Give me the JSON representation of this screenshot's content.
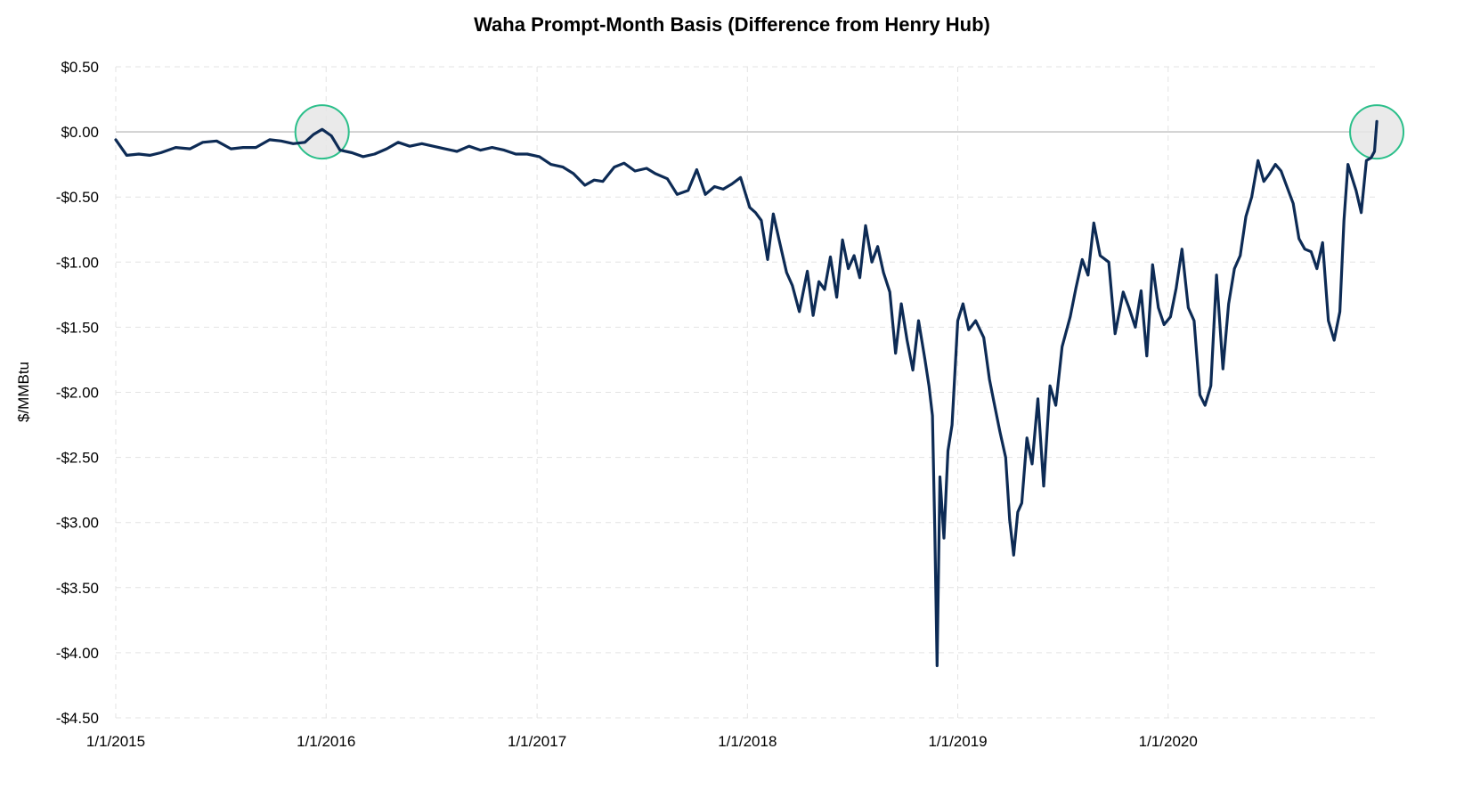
{
  "chart_data": {
    "type": "line",
    "title": "Waha Prompt-Month Basis (Difference from Henry Hub)",
    "xlabel": "",
    "ylabel": "$/MMBtu",
    "ylim": [
      -4.5,
      0.5
    ],
    "xlim": [
      "2015-01-01",
      "2020-12-31"
    ],
    "y_ticks": [
      0.5,
      0.0,
      -0.5,
      -1.0,
      -1.5,
      -2.0,
      -2.5,
      -3.0,
      -3.5,
      -4.0,
      -4.5
    ],
    "y_tick_labels": [
      "$0.50",
      "$0.00",
      "-$0.50",
      "-$1.00",
      "-$1.50",
      "-$2.00",
      "-$2.50",
      "-$3.00",
      "-$3.50",
      "-$4.00",
      "-$4.50"
    ],
    "x_ticks": [
      "2015-01-01",
      "2016-01-01",
      "2017-01-01",
      "2018-01-01",
      "2019-01-01",
      "2020-01-01"
    ],
    "x_tick_labels": [
      "1/1/2015",
      "1/1/2016",
      "1/1/2017",
      "1/1/2018",
      "1/1/2019",
      "1/1/2020"
    ],
    "grid": true,
    "legend": "none",
    "line_color": "#0d2b55",
    "highlight_color": "#2bbf8a",
    "zero_line_color": "#c8c8c8",
    "highlights": [
      {
        "x": "2015-12-25",
        "y": 0.0
      },
      {
        "x": "2020-12-28",
        "y": 0.0
      }
    ],
    "series": [
      {
        "x": [
          "2015-01-01",
          "2015-01-20",
          "2015-02-10",
          "2015-03-01",
          "2015-03-20",
          "2015-04-15",
          "2015-05-10",
          "2015-06-01",
          "2015-06-25",
          "2015-07-20",
          "2015-08-10",
          "2015-09-01",
          "2015-09-25",
          "2015-10-15",
          "2015-11-05",
          "2015-11-25",
          "2015-12-10",
          "2015-12-25",
          "2016-01-10",
          "2016-01-25",
          "2016-02-15",
          "2016-03-05",
          "2016-03-25",
          "2016-04-15",
          "2016-05-05",
          "2016-05-25",
          "2016-06-15",
          "2016-07-05",
          "2016-07-25",
          "2016-08-15",
          "2016-09-05",
          "2016-09-25",
          "2016-10-15",
          "2016-11-05",
          "2016-11-25",
          "2016-12-15",
          "2017-01-05",
          "2017-01-25",
          "2017-02-15",
          "2017-03-05",
          "2017-03-25",
          "2017-04-10",
          "2017-04-25",
          "2017-05-15",
          "2017-06-01",
          "2017-06-20",
          "2017-07-10",
          "2017-07-25",
          "2017-08-15",
          "2017-09-01",
          "2017-09-20",
          "2017-10-05",
          "2017-10-20",
          "2017-11-05",
          "2017-11-20",
          "2017-12-05",
          "2017-12-20",
          "2018-01-05",
          "2018-01-15",
          "2018-01-25",
          "2018-02-05",
          "2018-02-15",
          "2018-02-25",
          "2018-03-10",
          "2018-03-20",
          "2018-04-01",
          "2018-04-15",
          "2018-04-25",
          "2018-05-05",
          "2018-05-15",
          "2018-05-25",
          "2018-06-05",
          "2018-06-15",
          "2018-06-25",
          "2018-07-05",
          "2018-07-15",
          "2018-07-25",
          "2018-08-05",
          "2018-08-15",
          "2018-08-25",
          "2018-09-05",
          "2018-09-15",
          "2018-09-25",
          "2018-10-05",
          "2018-10-15",
          "2018-10-25",
          "2018-11-05",
          "2018-11-12",
          "2018-11-18",
          "2018-11-22",
          "2018-11-26",
          "2018-12-01",
          "2018-12-08",
          "2018-12-15",
          "2018-12-22",
          "2019-01-01",
          "2019-01-10",
          "2019-01-20",
          "2019-02-01",
          "2019-02-15",
          "2019-02-25",
          "2019-03-05",
          "2019-03-15",
          "2019-03-25",
          "2019-04-01",
          "2019-04-08",
          "2019-04-15",
          "2019-04-22",
          "2019-05-01",
          "2019-05-10",
          "2019-05-20",
          "2019-05-30",
          "2019-06-10",
          "2019-06-20",
          "2019-07-01",
          "2019-07-15",
          "2019-07-25",
          "2019-08-05",
          "2019-08-15",
          "2019-08-25",
          "2019-09-05",
          "2019-09-20",
          "2019-10-01",
          "2019-10-15",
          "2019-10-25",
          "2019-11-05",
          "2019-11-15",
          "2019-11-25",
          "2019-12-05",
          "2019-12-15",
          "2019-12-25",
          "2020-01-05",
          "2020-01-15",
          "2020-01-25",
          "2020-02-05",
          "2020-02-15",
          "2020-02-25",
          "2020-03-05",
          "2020-03-15",
          "2020-03-25",
          "2020-04-05",
          "2020-04-15",
          "2020-04-25",
          "2020-05-05",
          "2020-05-15",
          "2020-05-25",
          "2020-06-05",
          "2020-06-15",
          "2020-06-25",
          "2020-07-05",
          "2020-07-15",
          "2020-07-25",
          "2020-08-05",
          "2020-08-15",
          "2020-08-25",
          "2020-09-05",
          "2020-09-15",
          "2020-09-25",
          "2020-10-05",
          "2020-10-15",
          "2020-10-25",
          "2020-11-01",
          "2020-11-08",
          "2020-11-15",
          "2020-11-22",
          "2020-12-01",
          "2020-12-10",
          "2020-12-18",
          "2020-12-24",
          "2020-12-28"
        ],
        "values": [
          -0.06,
          -0.18,
          -0.17,
          -0.18,
          -0.16,
          -0.12,
          -0.13,
          -0.08,
          -0.07,
          -0.13,
          -0.12,
          -0.12,
          -0.06,
          -0.07,
          -0.09,
          -0.08,
          -0.02,
          0.02,
          -0.03,
          -0.14,
          -0.16,
          -0.19,
          -0.17,
          -0.13,
          -0.08,
          -0.11,
          -0.09,
          -0.11,
          -0.13,
          -0.15,
          -0.11,
          -0.14,
          -0.12,
          -0.14,
          -0.17,
          -0.17,
          -0.19,
          -0.25,
          -0.27,
          -0.32,
          -0.41,
          -0.37,
          -0.38,
          -0.27,
          -0.24,
          -0.3,
          -0.28,
          -0.32,
          -0.36,
          -0.48,
          -0.45,
          -0.29,
          -0.48,
          -0.42,
          -0.44,
          -0.4,
          -0.35,
          -0.58,
          -0.62,
          -0.68,
          -0.98,
          -0.63,
          -0.83,
          -1.08,
          -1.18,
          -1.38,
          -1.07,
          -1.41,
          -1.15,
          -1.21,
          -0.96,
          -1.27,
          -0.83,
          -1.05,
          -0.95,
          -1.12,
          -0.72,
          -1.0,
          -0.88,
          -1.08,
          -1.23,
          -1.7,
          -1.32,
          -1.6,
          -1.83,
          -1.45,
          -1.75,
          -1.95,
          -2.18,
          -3.05,
          -4.1,
          -2.65,
          -3.12,
          -2.45,
          -2.25,
          -1.45,
          -1.32,
          -1.52,
          -1.45,
          -1.58,
          -1.9,
          -2.08,
          -2.3,
          -2.5,
          -2.98,
          -3.25,
          -2.92,
          -2.85,
          -2.35,
          -2.55,
          -2.05,
          -2.72,
          -1.95,
          -2.1,
          -1.65,
          -1.42,
          -1.2,
          -0.98,
          -1.1,
          -0.7,
          -0.95,
          -1.0,
          -1.55,
          -1.23,
          -1.35,
          -1.5,
          -1.22,
          -1.72,
          -1.02,
          -1.35,
          -1.48,
          -1.42,
          -1.2,
          -0.9,
          -1.35,
          -1.45,
          -2.02,
          -2.1,
          -1.95,
          -1.1,
          -1.82,
          -1.32,
          -1.05,
          -0.95,
          -0.65,
          -0.5,
          -0.22,
          -0.38,
          -0.32,
          -0.25,
          -0.3,
          -0.42,
          -0.55,
          -0.82,
          -0.9,
          -0.92,
          -1.05,
          -0.85,
          -1.45,
          -1.6,
          -1.38,
          -0.68,
          -0.25,
          -0.35,
          -0.45,
          -0.62,
          -0.22,
          -0.2,
          -0.15,
          0.08
        ]
      }
    ]
  }
}
